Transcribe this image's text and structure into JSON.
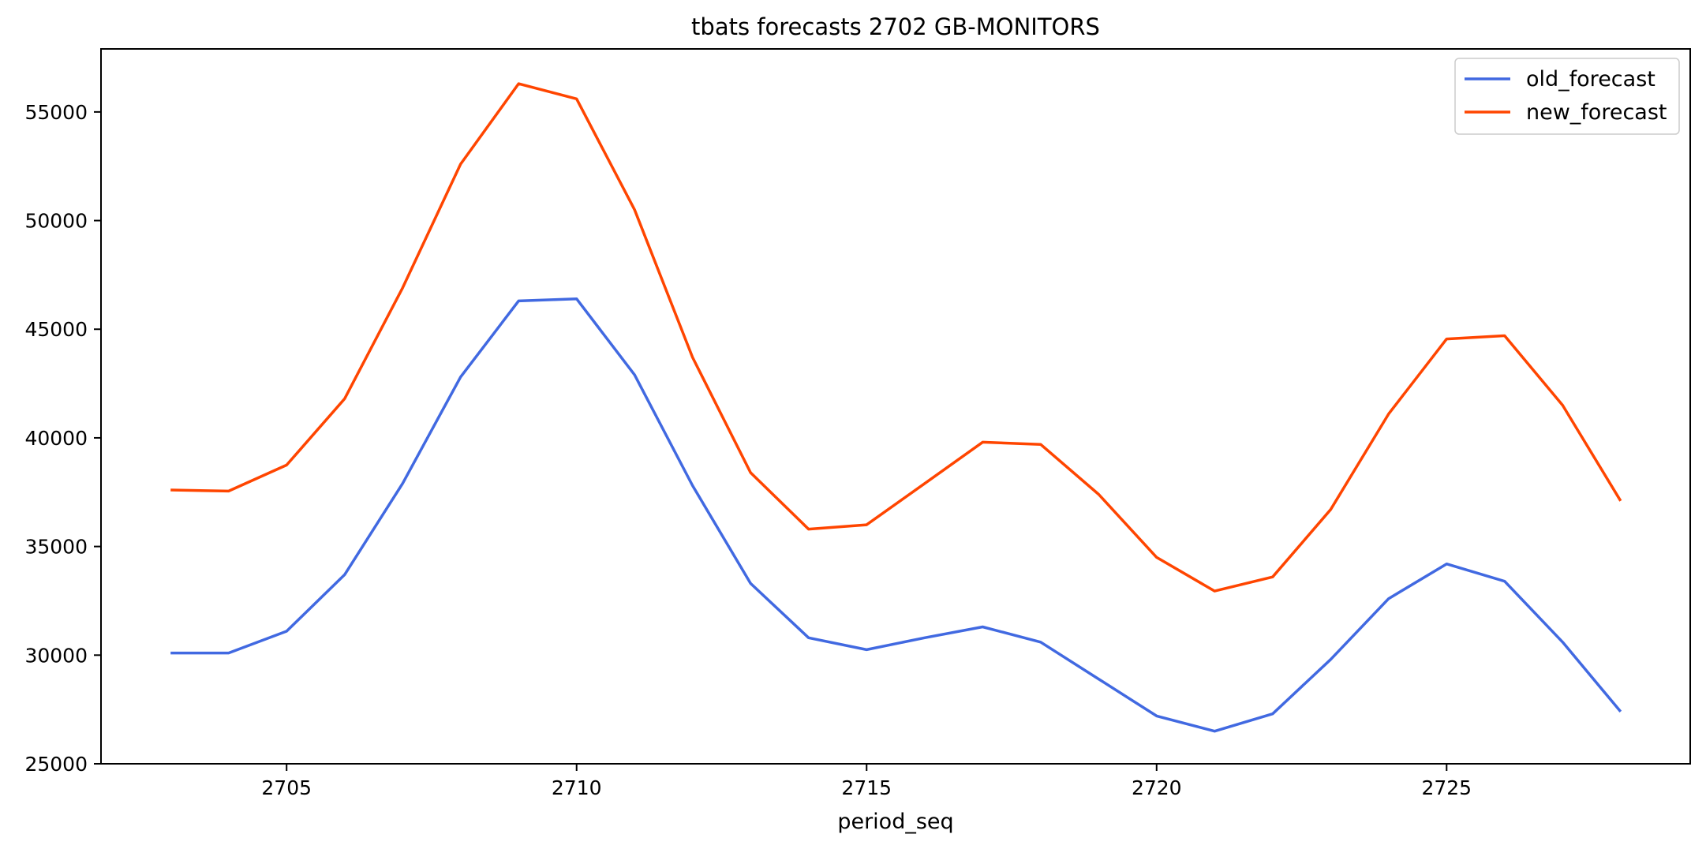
{
  "chart_data": {
    "type": "line",
    "title": "tbats forecasts 2702 GB-MONITORS",
    "xlabel": "period_seq",
    "ylabel": "",
    "xlim": [
      2701.8,
      2729.2
    ],
    "ylim": [
      25000,
      57900
    ],
    "xticks": [
      2705,
      2710,
      2715,
      2720,
      2725
    ],
    "yticks": [
      25000,
      30000,
      35000,
      40000,
      45000,
      50000,
      55000
    ],
    "legend_position": "top-right",
    "grid": false,
    "x": [
      2703,
      2704,
      2705,
      2706,
      2707,
      2708,
      2709,
      2710,
      2711,
      2712,
      2713,
      2714,
      2715,
      2716,
      2717,
      2718,
      2719,
      2720,
      2721,
      2722,
      2723,
      2724,
      2725,
      2726,
      2727,
      2728
    ],
    "series": [
      {
        "name": "old_forecast",
        "color": "#4169e1",
        "values": [
          30100,
          30100,
          31100,
          33700,
          37900,
          42800,
          46300,
          46400,
          42900,
          37800,
          33300,
          30800,
          30250,
          30800,
          31300,
          30600,
          28900,
          27200,
          26500,
          27300,
          29800,
          32600,
          34200,
          33400,
          30600,
          27400
        ]
      },
      {
        "name": "new_forecast",
        "color": "#ff4500",
        "values": [
          37600,
          37550,
          38750,
          41800,
          46900,
          52600,
          56300,
          55600,
          50500,
          43700,
          38400,
          35800,
          36000,
          37900,
          39800,
          39700,
          37400,
          34500,
          32950,
          33600,
          36700,
          41100,
          44550,
          44700,
          41500,
          37100
        ]
      }
    ]
  }
}
